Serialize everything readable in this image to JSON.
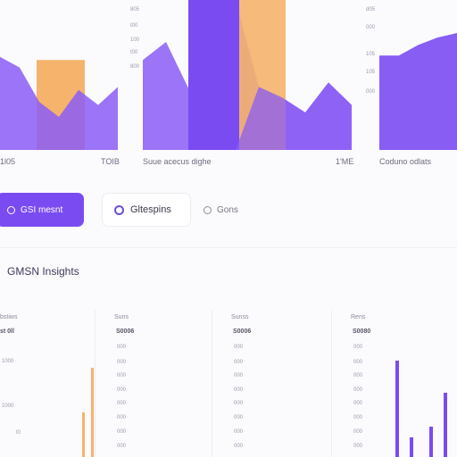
{
  "top_left_chart": {
    "ticks": [
      "",
      "",
      ""
    ],
    "x_start": "1l05",
    "x_end": "TOIB",
    "bar_value": 60,
    "area": [
      62,
      55,
      32,
      22,
      40,
      30,
      42
    ]
  },
  "top_mid_chart": {
    "ticks": [
      "805",
      "t00",
      "100",
      "t00",
      "800"
    ],
    "caption": "Suue acecus dighe",
    "x_end": "1'ME",
    "area": [
      60,
      72,
      40,
      100,
      100,
      42,
      35,
      25,
      45,
      30
    ],
    "bar1_value": 100,
    "bar2_value": 100
  },
  "top_right_chart": {
    "ticks": [
      "d05",
      "000",
      "105",
      "105",
      "000"
    ],
    "caption": "Coduno odlats",
    "area": [
      63,
      63,
      70,
      75,
      78
    ]
  },
  "actions": {
    "primary_label": "GSI mesnt",
    "secondary_label": "Gltespins",
    "link_label": "Gons"
  },
  "section": {
    "title": "GMSN Insights"
  },
  "panels": [
    {
      "head": "bstiws",
      "sub": "st 0ll",
      "rows": [
        "1000",
        "",
        "1000",
        "t0"
      ],
      "bars": []
    },
    {
      "head": "Suns",
      "sub": "S0006",
      "rows": [
        "000",
        "000",
        "000",
        "000",
        "000",
        "000",
        "000",
        "000"
      ]
    },
    {
      "head": "Sunss",
      "sub": "S0006",
      "rows": [
        "000",
        "000",
        "000",
        "000",
        "000",
        "000",
        "000",
        "000"
      ]
    },
    {
      "head": "Rens",
      "sub": "S0080",
      "rows": [
        "000",
        "000",
        "000",
        "000",
        "000",
        "000",
        "000",
        "000"
      ]
    }
  ],
  "colors": {
    "accent": "#7b4bf2",
    "accent_light": "#8b5cf6",
    "orange": "#f5b36b"
  }
}
